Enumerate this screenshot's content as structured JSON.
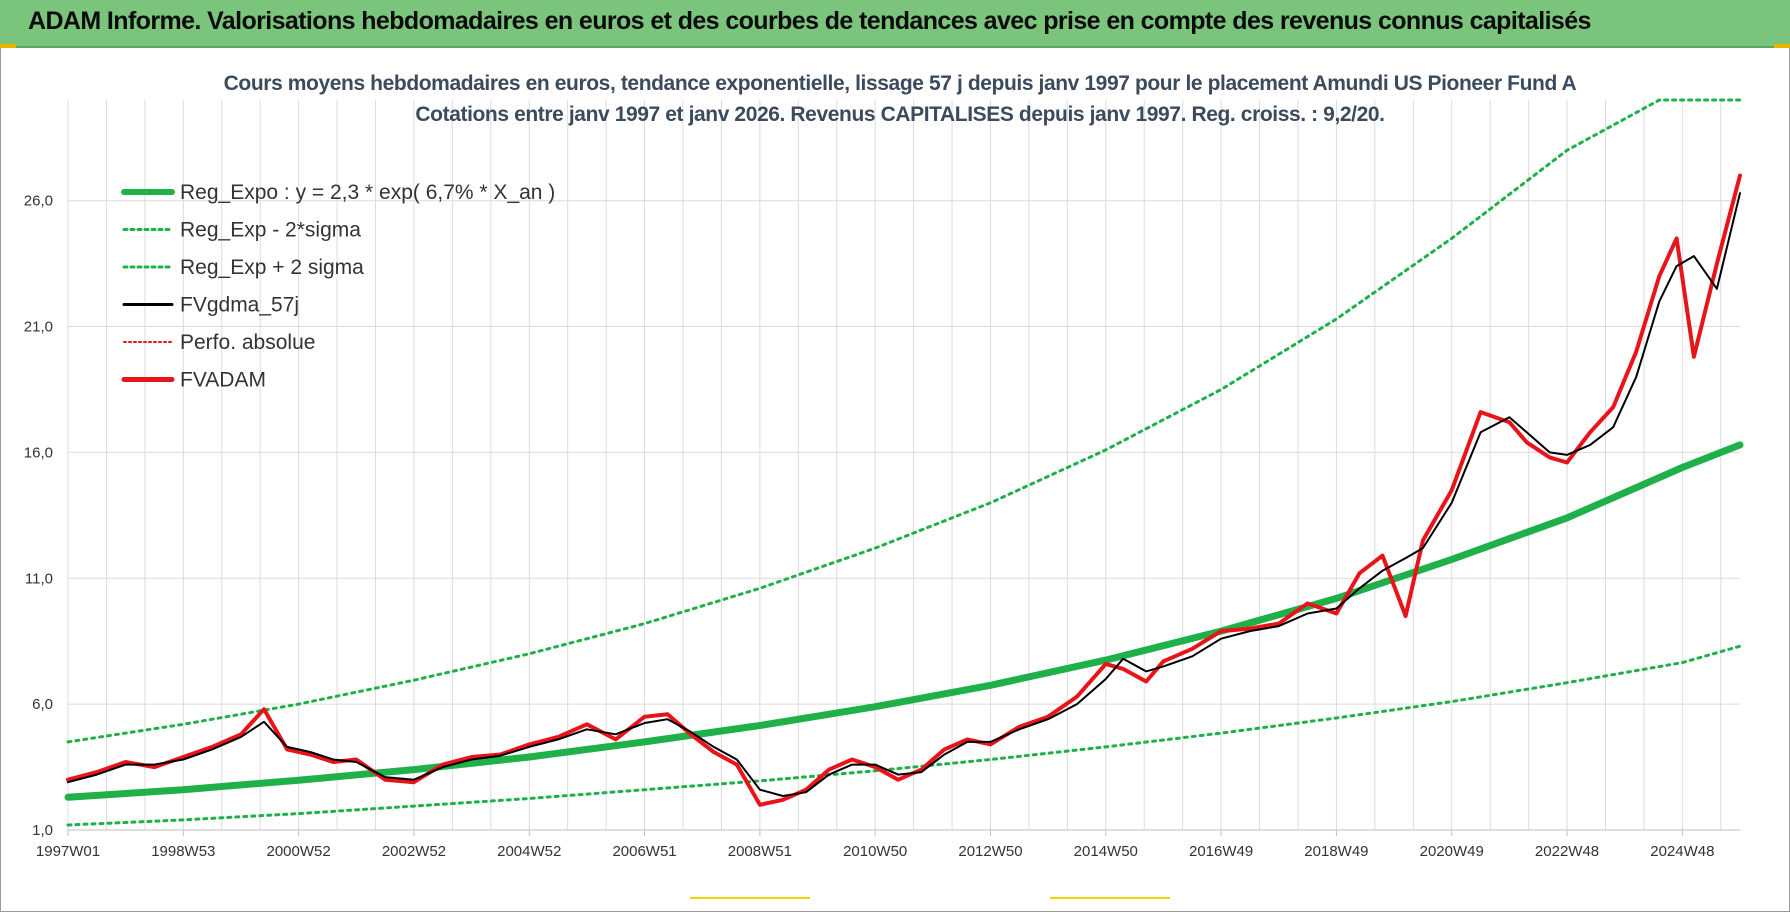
{
  "banner": {
    "title": "ADAM Informe. Valorisations hebdomadaires en euros et des courbes de tendances avec prise en compte des revenus connus capitalisés"
  },
  "colors": {
    "banner_bg": "#7ac57b",
    "reg_green": "#1fb04a",
    "sigma_green": "#1fb04a",
    "fvgdma_black": "#000000",
    "fvadam_red": "#e8141a",
    "perfo_red": "#e8141a",
    "grid": "#dcdcdc"
  },
  "chart_data": {
    "type": "line",
    "title_line1": "Cours moyens hebdomadaires en euros, tendance exponentielle, lissage 57 j depuis janv 1997 pour le placement Amundi US Pioneer Fund A",
    "title_line2": "Cotations entre janv 1997 et janv 2026. Revenus CAPITALISES depuis janv 1997. Reg. croiss. : 9,2/20.",
    "xlabel": "",
    "ylabel": "",
    "ylim": [
      1,
      30
    ],
    "xlim": [
      1997.0,
      2026.0
    ],
    "y_ticks": [
      "1,0",
      "6,0",
      "11,0",
      "16,0",
      "21,0",
      "26,0"
    ],
    "y_tick_values": [
      1,
      6,
      11,
      16,
      21,
      26
    ],
    "x_ticks": [
      "1997W01",
      "1998W53",
      "2000W52",
      "2002W52",
      "2004W52",
      "2006W51",
      "2008W51",
      "2010W50",
      "2012W50",
      "2014W50",
      "2016W49",
      "2018W49",
      "2020W49",
      "2022W48",
      "2024W48"
    ],
    "x_tick_values": [
      1997.0,
      1999.0,
      2001.0,
      2003.0,
      2005.0,
      2007.0,
      2009.0,
      2011.0,
      2013.0,
      2015.0,
      2017.0,
      2019.0,
      2021.0,
      2023.0,
      2025.0
    ],
    "legend": [
      {
        "label": "Reg_Expo : y = 2,3 * exp( 6,7% *  X_an )",
        "style": "thick-green"
      },
      {
        "label": "Reg_Exp - 2*sigma",
        "style": "dotted-green"
      },
      {
        "label": "Reg_Exp + 2 sigma",
        "style": "dotted-green"
      },
      {
        "label": "FVgdma_57j",
        "style": "solid-black"
      },
      {
        "label": "Perfo. absolue",
        "style": "dotted-red"
      },
      {
        "label": "FVADAM",
        "style": "thick-red"
      }
    ],
    "series": [
      {
        "name": "Reg_Expo : y = 2,3 * exp( 6,7% *  X_an )",
        "x": [
          1997.0,
          1999.0,
          2001.0,
          2003.0,
          2005.0,
          2007.0,
          2009.0,
          2011.0,
          2013.0,
          2015.0,
          2017.0,
          2019.0,
          2021.0,
          2023.0,
          2025.0,
          2026.0
        ],
        "values": [
          2.3,
          2.6,
          2.98,
          3.4,
          3.9,
          4.5,
          5.15,
          5.9,
          6.75,
          7.75,
          8.9,
          10.2,
          11.75,
          13.4,
          15.4,
          16.3
        ]
      },
      {
        "name": "Reg_Exp - 2*sigma",
        "x": [
          1997.0,
          1999.0,
          2001.0,
          2003.0,
          2005.0,
          2007.0,
          2009.0,
          2011.0,
          2013.0,
          2015.0,
          2017.0,
          2019.0,
          2021.0,
          2023.0,
          2025.0,
          2026.0
        ],
        "values": [
          1.2,
          1.4,
          1.65,
          1.95,
          2.25,
          2.6,
          2.95,
          3.35,
          3.8,
          4.3,
          4.85,
          5.45,
          6.1,
          6.85,
          7.65,
          8.3
        ]
      },
      {
        "name": "Reg_Exp + 2 sigma",
        "x": [
          1997.0,
          1999.0,
          2001.0,
          2003.0,
          2005.0,
          2007.0,
          2009.0,
          2011.0,
          2013.0,
          2015.0,
          2017.0,
          2019.0,
          2021.0,
          2023.0,
          2024.6,
          2026.0
        ],
        "values": [
          4.5,
          5.2,
          6.0,
          6.95,
          8.0,
          9.2,
          10.6,
          12.2,
          14.0,
          16.1,
          18.5,
          21.3,
          24.5,
          28.0,
          30.0,
          30.0
        ]
      },
      {
        "name": "FVgdma_57j",
        "x": [
          1997.0,
          1997.5,
          1998.0,
          1998.5,
          1999.0,
          1999.5,
          2000.0,
          2000.4,
          2000.8,
          2001.2,
          2001.6,
          2002.0,
          2002.5,
          2003.0,
          2003.5,
          2004.0,
          2004.5,
          2005.0,
          2005.5,
          2006.0,
          2006.5,
          2007.0,
          2007.4,
          2007.8,
          2008.2,
          2008.6,
          2009.0,
          2009.4,
          2009.8,
          2010.2,
          2010.6,
          2011.0,
          2011.4,
          2011.8,
          2012.2,
          2012.6,
          2013.0,
          2013.5,
          2014.0,
          2014.5,
          2015.0,
          2015.3,
          2015.7,
          2016.0,
          2016.5,
          2017.0,
          2017.5,
          2018.0,
          2018.5,
          2019.0,
          2019.4,
          2019.8,
          2020.2,
          2020.5,
          2021.0,
          2021.5,
          2022.0,
          2022.3,
          2022.7,
          2023.0,
          2023.4,
          2023.8,
          2024.2,
          2024.6,
          2024.9,
          2025.2,
          2025.6,
          2026.0
        ],
        "values": [
          2.9,
          3.2,
          3.6,
          3.6,
          3.8,
          4.2,
          4.7,
          5.3,
          4.3,
          4.1,
          3.8,
          3.7,
          3.1,
          3.0,
          3.5,
          3.8,
          3.95,
          4.3,
          4.6,
          5.0,
          4.8,
          5.25,
          5.4,
          4.9,
          4.3,
          3.8,
          2.6,
          2.35,
          2.5,
          3.2,
          3.6,
          3.6,
          3.2,
          3.3,
          4.0,
          4.5,
          4.5,
          5.0,
          5.4,
          6.0,
          7.0,
          7.8,
          7.3,
          7.5,
          7.9,
          8.6,
          8.9,
          9.1,
          9.6,
          9.8,
          10.6,
          11.3,
          11.8,
          12.2,
          14.0,
          16.8,
          17.4,
          16.8,
          16.0,
          15.9,
          16.3,
          17.0,
          19.0,
          22.0,
          23.4,
          23.8,
          22.5,
          26.3
        ]
      },
      {
        "name": "FVADAM",
        "x": [
          1997.0,
          1997.5,
          1998.0,
          1998.5,
          1999.0,
          1999.5,
          2000.0,
          2000.4,
          2000.8,
          2001.2,
          2001.6,
          2002.0,
          2002.5,
          2003.0,
          2003.5,
          2004.0,
          2004.5,
          2005.0,
          2005.5,
          2006.0,
          2006.5,
          2007.0,
          2007.4,
          2007.8,
          2008.2,
          2008.6,
          2009.0,
          2009.4,
          2009.8,
          2010.2,
          2010.6,
          2011.0,
          2011.4,
          2011.8,
          2012.2,
          2012.6,
          2013.0,
          2013.5,
          2014.0,
          2014.5,
          2015.0,
          2015.3,
          2015.7,
          2016.0,
          2016.5,
          2017.0,
          2017.5,
          2018.0,
          2018.5,
          2019.0,
          2019.4,
          2019.8,
          2020.2,
          2020.5,
          2021.0,
          2021.5,
          2022.0,
          2022.3,
          2022.7,
          2023.0,
          2023.4,
          2023.8,
          2024.2,
          2024.6,
          2024.9,
          2025.2,
          2025.6,
          2026.0
        ],
        "values": [
          3.0,
          3.3,
          3.7,
          3.5,
          3.9,
          4.3,
          4.8,
          5.8,
          4.2,
          4.0,
          3.7,
          3.8,
          3.0,
          2.9,
          3.6,
          3.9,
          4.0,
          4.4,
          4.7,
          5.2,
          4.6,
          5.5,
          5.6,
          4.8,
          4.1,
          3.6,
          2.0,
          2.2,
          2.6,
          3.4,
          3.8,
          3.5,
          3.0,
          3.4,
          4.2,
          4.6,
          4.4,
          5.1,
          5.5,
          6.3,
          7.6,
          7.4,
          6.9,
          7.7,
          8.2,
          8.9,
          9.0,
          9.2,
          10.0,
          9.6,
          11.2,
          11.9,
          9.5,
          12.5,
          14.5,
          17.6,
          17.2,
          16.4,
          15.8,
          15.6,
          16.8,
          17.8,
          20.0,
          23.0,
          24.5,
          19.8,
          23.5,
          27.0
        ]
      }
    ]
  }
}
